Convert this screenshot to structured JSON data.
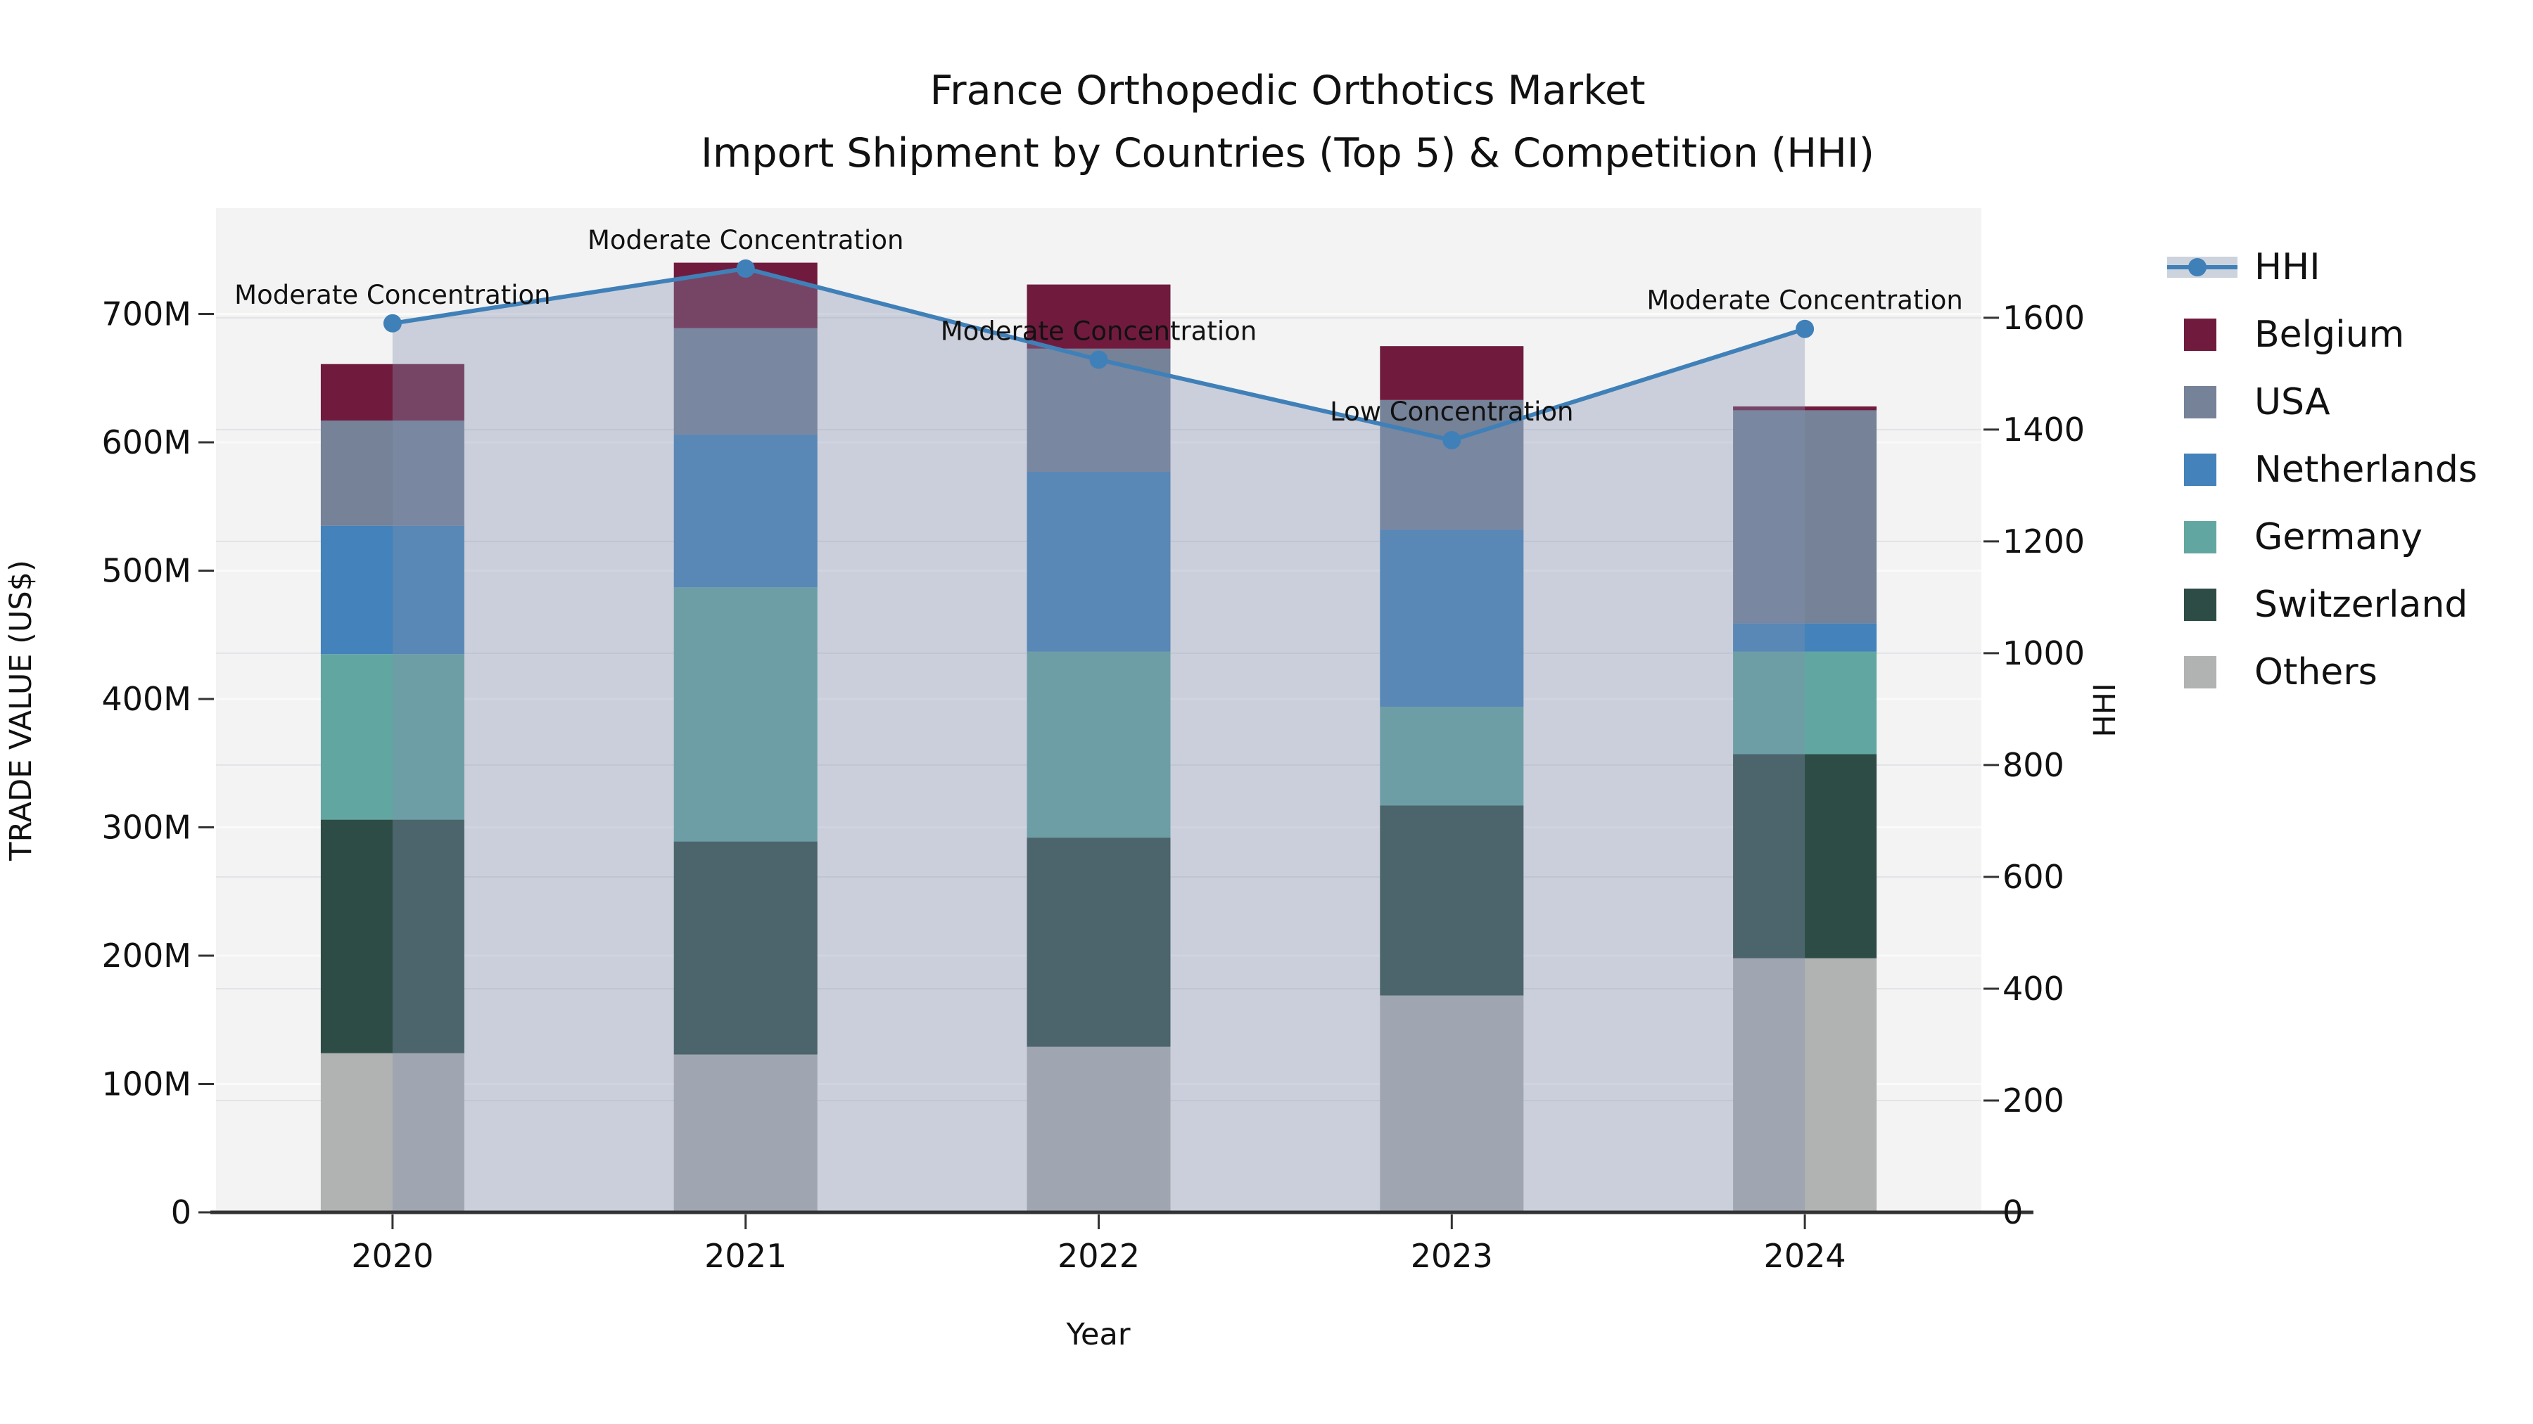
{
  "title": {
    "line1": "France Orthopedic Orthotics Market",
    "line2": "Import Shipment by Countries (Top 5) & Competition (HHI)"
  },
  "colors": {
    "plot_background": "#f3f3f4",
    "grid_major_left": "#fafafa",
    "grid_major_right": "#e2e3e6",
    "axis_spine": "#333333",
    "text": "#111111",
    "hhi_line": "#4080b8",
    "hhi_area": "rgba(130,145,175,0.36)",
    "belgium": "#701b3e",
    "usa": "#758298",
    "netherlands": "#4382ba",
    "germany": "#62a6a2",
    "switzerland": "#2e4c46",
    "others": "#b1b2b2"
  },
  "chart_data": {
    "type": "bar",
    "subtype": "stacked-bars-with-secondary-line",
    "title": "France Orthopedic Orthotics Market — Import Shipment by Countries (Top 5) & Competition (HHI)",
    "categories": [
      "2020",
      "2021",
      "2022",
      "2023",
      "2024"
    ],
    "stack_order_bottom_to_top": [
      "Others",
      "Switzerland",
      "Germany",
      "Netherlands",
      "USA",
      "Belgium"
    ],
    "series": [
      {
        "name": "Others",
        "color": "#b1b2b2",
        "values": [
          124,
          123,
          129,
          169,
          198
        ]
      },
      {
        "name": "Switzerland",
        "color": "#2e4c46",
        "values": [
          182,
          166,
          163,
          148,
          159
        ]
      },
      {
        "name": "Germany",
        "color": "#62a6a2",
        "values": [
          129,
          198,
          145,
          77,
          80
        ]
      },
      {
        "name": "Netherlands",
        "color": "#4382ba",
        "values": [
          100,
          119,
          140,
          138,
          22
        ]
      },
      {
        "name": "USA",
        "color": "#758298",
        "values": [
          82,
          83,
          96,
          101,
          166
        ]
      },
      {
        "name": "Belgium",
        "color": "#701b3e",
        "values": [
          44,
          51,
          50,
          42,
          3
        ]
      }
    ],
    "bar_totals": [
      661,
      740,
      723,
      675,
      628
    ],
    "line_series": {
      "name": "HHI",
      "color": "#4080b8",
      "area_color": "rgba(130,145,175,0.36)",
      "axis": "right",
      "values": [
        1590,
        1688,
        1525,
        1381,
        1580
      ]
    },
    "annotations": [
      {
        "category": "2020",
        "text": "Moderate Concentration"
      },
      {
        "category": "2021",
        "text": "Moderate Concentration"
      },
      {
        "category": "2022",
        "text": "Moderate Concentration"
      },
      {
        "category": "2023",
        "text": "Low Concentration"
      },
      {
        "category": "2024",
        "text": "Moderate Concentration"
      }
    ],
    "xlabel": "Year",
    "ylabel_left": "TRADE VALUE (US$)",
    "ylabel_right": "HHI",
    "y_left_axis": {
      "min": 0,
      "max": 782.5,
      "tick_values": [
        0,
        100,
        200,
        300,
        400,
        500,
        600,
        700
      ],
      "tick_labels": [
        "0",
        "100M",
        "200M",
        "300M",
        "400M",
        "500M",
        "600M",
        "700M"
      ],
      "unit": "M US$"
    },
    "y_right_axis": {
      "min": 0,
      "max": 1796,
      "tick_values": [
        0,
        200,
        400,
        600,
        800,
        1000,
        1200,
        1400,
        1600
      ],
      "tick_labels": [
        "0",
        "200",
        "400",
        "600",
        "800",
        "1000",
        "1200",
        "1400",
        "1600"
      ]
    },
    "grid": true,
    "legend_position": "right-outside"
  },
  "legend": {
    "items": [
      {
        "label": "HHI",
        "type": "line",
        "color": "#4080b8"
      },
      {
        "label": "Belgium",
        "type": "swatch",
        "color": "#701b3e"
      },
      {
        "label": "USA",
        "type": "swatch",
        "color": "#758298"
      },
      {
        "label": "Netherlands",
        "type": "swatch",
        "color": "#4382ba"
      },
      {
        "label": "Germany",
        "type": "swatch",
        "color": "#62a6a2"
      },
      {
        "label": "Switzerland",
        "type": "swatch",
        "color": "#2e4c46"
      },
      {
        "label": "Others",
        "type": "swatch",
        "color": "#b1b2b2"
      }
    ]
  }
}
